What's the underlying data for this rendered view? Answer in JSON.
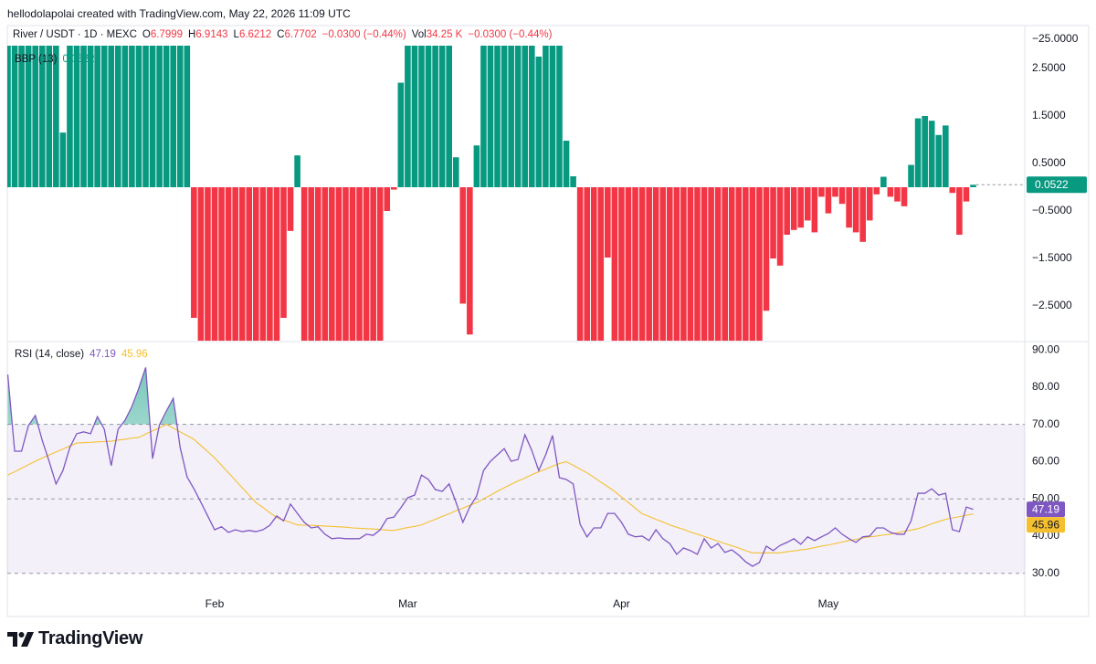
{
  "header": {
    "attribution": "hellodolapolai created with TradingView.com, May 22, 2026 11:09 UTC",
    "symbol": "River / USDT · 1D · MEXC",
    "ohlc": [
      {
        "key": "O",
        "value": "6.7999"
      },
      {
        "key": "H",
        "value": "6.9143"
      },
      {
        "key": "L",
        "value": "6.6212"
      },
      {
        "key": "C",
        "value": "6.7702"
      }
    ],
    "change": "−0.0300 (−0.44%)",
    "volume_key": "Vol",
    "volume": "34.25 K",
    "volume_change": "−0.0300 (−0.44%)",
    "price_scale_label": "−25.0000"
  },
  "footer": {
    "logo": "TradingView"
  },
  "chart_data": [
    {
      "type": "bar",
      "title": "BBP (13)",
      "positive_color": "#089981",
      "negative_color": "#f23645",
      "ylim": [
        -3.23,
        2.98
      ],
      "yticks": [
        {
          "value": 2.5,
          "label": "2.5000"
        },
        {
          "value": 1.5,
          "label": "1.5000"
        },
        {
          "value": 0.5,
          "label": "0.5000"
        },
        {
          "value": -0.5,
          "label": "−0.5000"
        },
        {
          "value": -1.5,
          "label": "−1.5000"
        },
        {
          "value": -2.5,
          "label": "−2.5000"
        }
      ],
      "values": [
        3.3,
        3.3,
        3.3,
        3.3,
        3.3,
        3.3,
        3.3,
        3.3,
        1.15,
        3.3,
        3.3,
        3.3,
        3.3,
        3.3,
        3.3,
        3.3,
        3.3,
        3.3,
        3.3,
        3.3,
        3.3,
        3.3,
        3.3,
        3.3,
        3.3,
        3.3,
        3.3,
        -2.75,
        -3.5,
        -3.5,
        -3.5,
        -3.5,
        -3.5,
        -3.5,
        -3.5,
        -3.5,
        -3.5,
        -3.5,
        -3.5,
        -3.5,
        -2.75,
        -0.92,
        0.67,
        -3.5,
        -3.5,
        -3.5,
        -3.5,
        -3.5,
        -3.5,
        -3.5,
        -3.5,
        -3.5,
        -3.5,
        -3.5,
        -3.5,
        -0.5,
        -0.05,
        2.2,
        3.3,
        3.3,
        3.3,
        3.3,
        3.3,
        3.3,
        3.3,
        0.63,
        -2.45,
        -3.1,
        0.88,
        3.3,
        3.3,
        3.3,
        3.3,
        3.3,
        3.3,
        3.3,
        3.3,
        2.75,
        3.3,
        3.3,
        3.3,
        0.98,
        0.23,
        -3.5,
        -3.5,
        -3.5,
        -3.5,
        -1.48,
        -3.5,
        -3.5,
        -3.5,
        -3.5,
        -3.5,
        -3.5,
        -3.5,
        -3.5,
        -3.5,
        -3.5,
        -3.5,
        -3.5,
        -3.5,
        -3.5,
        -3.5,
        -3.5,
        -3.5,
        -3.5,
        -3.5,
        -3.5,
        -3.5,
        -3.5,
        -2.6,
        -1.5,
        -1.65,
        -1.0,
        -0.9,
        -0.85,
        -0.7,
        -0.95,
        -0.2,
        -0.55,
        -0.2,
        -0.35,
        -0.85,
        -0.95,
        -1.15,
        -0.7,
        -0.15,
        0.22,
        -0.2,
        -0.3,
        -0.4,
        0.47,
        1.45,
        1.5,
        1.4,
        1.1,
        1.3,
        -0.12,
        -1.0,
        -0.3,
        0.0522
      ]
    },
    {
      "type": "line",
      "title": "RSI (14, close)",
      "ylim": [
        18.4,
        92
      ],
      "yticks": [
        {
          "value": 90,
          "label": "90.00"
        },
        {
          "value": 80,
          "label": "80.00"
        },
        {
          "value": 70,
          "label": "70.00"
        },
        {
          "value": 60,
          "label": "60.00"
        },
        {
          "value": 50,
          "label": "50.00"
        },
        {
          "value": 40,
          "label": "40.00"
        },
        {
          "value": 30,
          "label": "30.00"
        }
      ],
      "band_levels": [
        70,
        50,
        30
      ],
      "band_color": "#7e57c2",
      "overbought_fill_color": "#089981",
      "categories": [
        null,
        null,
        null,
        null,
        null,
        null,
        null,
        null,
        null,
        null,
        null,
        null,
        null,
        null,
        null,
        null,
        null,
        null,
        null,
        null,
        null,
        null,
        null,
        null,
        null,
        null,
        null,
        null,
        null,
        null,
        "Feb",
        null,
        null,
        null,
        null,
        null,
        null,
        null,
        null,
        null,
        null,
        null,
        null,
        null,
        null,
        null,
        null,
        null,
        null,
        null,
        null,
        null,
        null,
        null,
        null,
        null,
        null,
        null,
        "Mar",
        null,
        null,
        null,
        null,
        null,
        null,
        null,
        null,
        null,
        null,
        null,
        null,
        null,
        null,
        null,
        null,
        null,
        null,
        null,
        null,
        null,
        null,
        null,
        null,
        null,
        null,
        null,
        null,
        null,
        null,
        "Apr",
        null,
        null,
        null,
        null,
        null,
        null,
        null,
        null,
        null,
        null,
        null,
        null,
        null,
        null,
        null,
        null,
        null,
        null,
        null,
        null,
        null,
        null,
        null,
        null,
        null,
        null,
        null,
        null,
        null,
        "May",
        null,
        null,
        null,
        null,
        null,
        null,
        null,
        null,
        null,
        null,
        null,
        null,
        null,
        null,
        null,
        null,
        null,
        null,
        null,
        null,
        null
      ],
      "series": [
        {
          "color": "#7e57c2",
          "values": [
            83.4,
            62.8,
            62.8,
            69.7,
            72.4,
            65.7,
            60.1,
            54,
            57.6,
            63.8,
            67.5,
            68,
            67.5,
            72.1,
            68.7,
            58.9,
            68.7,
            71.1,
            74.8,
            79.7,
            85.3,
            60.8,
            69.9,
            73.6,
            77,
            63.8,
            55.9,
            52.7,
            49.1,
            45.4,
            41.7,
            42.5,
            41,
            41.7,
            41.2,
            41.5,
            41.2,
            41.7,
            42.9,
            45.4,
            44.1,
            48.6,
            46.1,
            43.7,
            42.2,
            42.5,
            40.5,
            39.3,
            39.5,
            39.3,
            39.3,
            39.3,
            40.5,
            40.2,
            41.7,
            44.7,
            45.1,
            47.6,
            50.3,
            51,
            56.4,
            55.2,
            52.5,
            52,
            54,
            49.1,
            43.7,
            47.8,
            50.8,
            57.6,
            60.1,
            61.8,
            63.5,
            60.1,
            60.6,
            67.2,
            63,
            57.6,
            61.8,
            67,
            55.7,
            55.2,
            54,
            43.2,
            39.8,
            42.2,
            42.2,
            46.1,
            46.1,
            43.7,
            40.5,
            39.8,
            40,
            38.8,
            41.7,
            39.3,
            38,
            35.1,
            36.8,
            36.1,
            35.1,
            39.3,
            36.8,
            38,
            35.6,
            36.3,
            34.9,
            33.1,
            31.9,
            32.9,
            37.3,
            36.1,
            37.5,
            38.3,
            39.3,
            37.8,
            39.8,
            38.8,
            39.8,
            40.7,
            42.2,
            40.5,
            39.3,
            38.3,
            39.8,
            40,
            42.2,
            42.2,
            41,
            40.5,
            40.5,
            44.1,
            51.5,
            51.5,
            52.7,
            51,
            51.5,
            41.7,
            41.2,
            47.8,
            47.19
          ]
        },
        {
          "color": "#f5c02f",
          "values": [
            56.4,
            57.3,
            58.2,
            59.2,
            60.1,
            61,
            61.8,
            62.6,
            63.4,
            64.2,
            65,
            65.1,
            65.2,
            65.3,
            65.4,
            65.5,
            65.8,
            66,
            66.3,
            66.5,
            67.4,
            68.3,
            69.1,
            70,
            69,
            68,
            67,
            66,
            64.3,
            62.7,
            61,
            59,
            57,
            55,
            53,
            51,
            49,
            47.7,
            46.3,
            45,
            44.3,
            43.7,
            43,
            42.9,
            42.9,
            42.8,
            42.7,
            42.6,
            42.5,
            42.4,
            42.2,
            42.1,
            42,
            41.9,
            41.8,
            41.6,
            41.5,
            41.9,
            42.3,
            42.6,
            43,
            43.8,
            44.5,
            45.3,
            46,
            46.8,
            47.5,
            48.3,
            49,
            50,
            51,
            52,
            53,
            53.9,
            54.8,
            55.6,
            56.5,
            57.3,
            58,
            58.8,
            59.5,
            60,
            59,
            58,
            57,
            55.8,
            54.5,
            53.3,
            52,
            50.5,
            49,
            47.5,
            46,
            45.3,
            44.5,
            43.8,
            43,
            42.4,
            41.8,
            41.1,
            40.5,
            39.9,
            39.3,
            38.6,
            38,
            37.4,
            36.8,
            36.1,
            35.5,
            35.5,
            35.5,
            35.5,
            35.5,
            35.8,
            36,
            36.3,
            36.5,
            36.9,
            37.3,
            37.6,
            38,
            38.4,
            38.8,
            39.1,
            39.5,
            39.8,
            40,
            40.3,
            40.5,
            40.9,
            41.3,
            41.6,
            42,
            42.6,
            43.3,
            43.9,
            44.5,
            44.9,
            45.2,
            45.6,
            45.96
          ]
        }
      ]
    }
  ]
}
